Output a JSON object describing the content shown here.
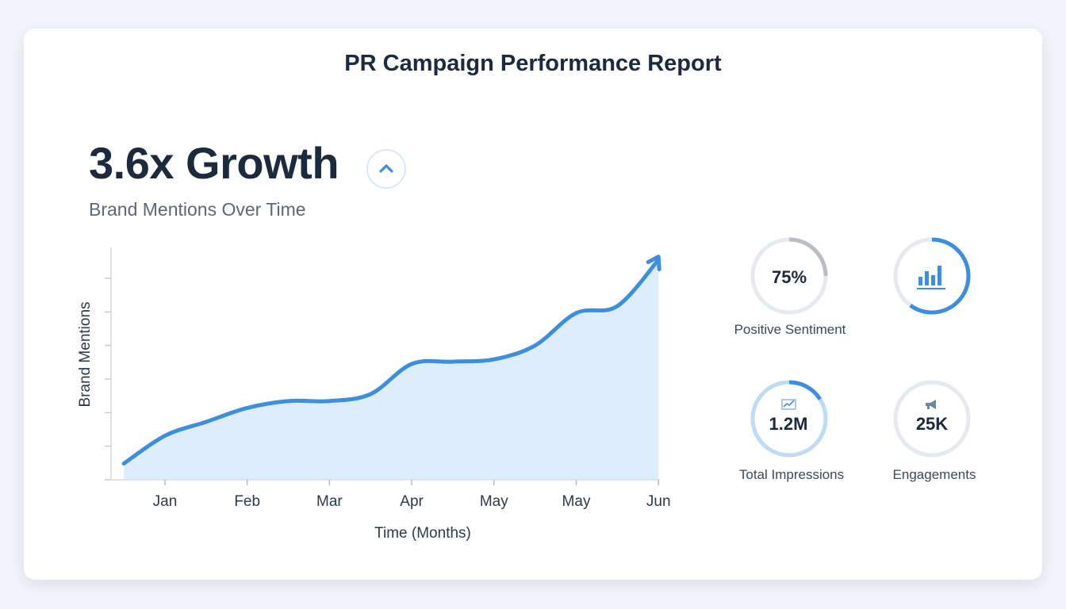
{
  "report": {
    "title": "PR Campaign Performance Report"
  },
  "headline": {
    "value": "3.6x Growth",
    "subtitle": "Brand Mentions Over Time"
  },
  "colors": {
    "line": "#3b8ee0",
    "area": "#deedfb",
    "text": "#1b2a3d",
    "ring_track": "#e6e9ee",
    "ring_gray": "#b9bec6",
    "ring_light": "#bcdcf6"
  },
  "chart_data": {
    "type": "area",
    "title": "Brand Mentions Over Time",
    "xlabel": "Time (Months)",
    "ylabel": "Brand Mentions",
    "categories": [
      "Jan",
      "Feb",
      "Mar",
      "Apr",
      "May",
      "May",
      "Jun"
    ],
    "series": [
      {
        "name": "Brand Mentions",
        "x": [
          -0.5,
          0,
          0.5,
          1,
          1.5,
          2,
          2.5,
          3,
          3.5,
          4,
          4.5,
          5,
          5.5,
          6
        ],
        "y": [
          0.7,
          1.9,
          2.5,
          3.1,
          3.4,
          3.4,
          3.7,
          5.0,
          5.1,
          5.2,
          5.8,
          7.2,
          7.5,
          9.5
        ]
      }
    ],
    "xlim": [
      -0.7,
      6
    ],
    "ylim": [
      0,
      10
    ],
    "grid": false,
    "legend": "none",
    "growth_multiplier": 3.6
  },
  "kpis": [
    {
      "id": "positive-sentiment",
      "value": "75%",
      "label": "Positive Sentiment",
      "progress": 0.25,
      "style": "gray"
    },
    {
      "id": "analytics",
      "value": "",
      "label": "",
      "progress": 0.6,
      "style": "blue",
      "icon": "bar-chart-icon"
    },
    {
      "id": "total-impressions",
      "value": "1.2M",
      "label": "Total Impressions",
      "progress": 0.16,
      "style": "light",
      "icon": "growth-chart-icon"
    },
    {
      "id": "engagements",
      "value": "25K",
      "label": "Engagements",
      "progress": 0,
      "style": "track",
      "icon": "megaphone-icon"
    }
  ]
}
